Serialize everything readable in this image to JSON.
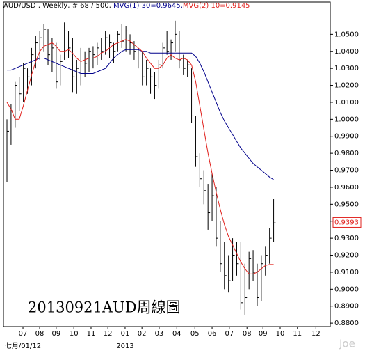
{
  "chart_data": {
    "type": "ohlc",
    "title": "AUD/USD , Weekly, # 68 / 500, ",
    "annotation": "20130921AUD周線圖",
    "watermark": "Joe",
    "color": "#000000",
    "high": [
      1.0,
      1.009,
      1.022,
      1.025,
      1.033,
      1.03,
      1.042,
      1.049,
      1.052,
      1.056,
      1.053,
      1.048,
      1.045,
      1.038,
      1.057,
      1.052,
      1.048,
      1.035,
      1.042,
      1.04,
      1.042,
      1.043,
      1.045,
      1.048,
      1.052,
      1.05,
      1.045,
      1.052,
      1.056,
      1.055,
      1.05,
      1.046,
      1.042,
      1.04,
      1.035,
      1.03,
      1.028,
      1.035,
      1.045,
      1.052,
      1.047,
      1.058,
      1.052,
      1.038,
      1.035,
      1.03,
      1.002,
      0.98,
      0.97,
      0.962,
      0.968,
      0.96,
      0.94,
      0.928,
      0.92,
      0.93,
      0.928,
      0.928,
      0.915,
      0.922,
      0.923,
      0.915,
      0.92,
      0.925,
      0.936,
      0.953
    ],
    "low": [
      0.963,
      0.985,
      0.995,
      1.005,
      1.01,
      1.015,
      1.02,
      1.03,
      1.035,
      1.04,
      1.032,
      1.028,
      1.018,
      1.02,
      1.035,
      1.036,
      1.016,
      1.015,
      1.02,
      1.025,
      1.028,
      1.03,
      1.032,
      1.035,
      1.038,
      1.036,
      1.033,
      1.04,
      1.042,
      1.04,
      1.038,
      1.035,
      1.03,
      1.02,
      1.02,
      1.015,
      1.012,
      1.018,
      1.03,
      1.038,
      1.035,
      1.04,
      1.03,
      1.026,
      1.025,
      0.998,
      0.972,
      0.96,
      0.95,
      0.935,
      0.94,
      0.925,
      0.91,
      0.9,
      0.898,
      0.905,
      0.908,
      0.888,
      0.885,
      0.9,
      0.905,
      0.89,
      0.893,
      0.908,
      0.915,
      0.928
    ],
    "close": [
      0.993,
      1.005,
      1.02,
      1.015,
      1.03,
      1.025,
      1.038,
      1.045,
      1.048,
      1.053,
      1.038,
      1.042,
      1.022,
      1.034,
      1.052,
      1.042,
      1.025,
      1.03,
      1.036,
      1.033,
      1.04,
      1.038,
      1.042,
      1.04,
      1.048,
      1.045,
      1.04,
      1.05,
      1.046,
      1.052,
      1.045,
      1.04,
      1.036,
      1.025,
      1.03,
      1.025,
      1.02,
      1.032,
      1.042,
      1.04,
      1.045,
      1.05,
      1.035,
      1.03,
      1.032,
      1.002,
      0.978,
      0.965,
      0.958,
      0.945,
      0.955,
      0.93,
      0.915,
      0.908,
      0.905,
      0.92,
      0.915,
      0.892,
      0.895,
      0.918,
      0.91,
      0.895,
      0.915,
      0.92,
      0.93,
      0.939
    ],
    "series": [
      {
        "name": "MVG(1) 30=0.9645,",
        "color": "#00008b",
        "values": [
          1.029,
          1.029,
          1.03,
          1.031,
          1.032,
          1.033,
          1.034,
          1.035,
          1.036,
          1.036,
          1.035,
          1.034,
          1.033,
          1.032,
          1.031,
          1.03,
          1.029,
          1.028,
          1.027,
          1.027,
          1.027,
          1.027,
          1.028,
          1.029,
          1.03,
          1.033,
          1.036,
          1.038,
          1.04,
          1.041,
          1.041,
          1.041,
          1.041,
          1.04,
          1.04,
          1.039,
          1.039,
          1.039,
          1.039,
          1.039,
          1.039,
          1.039,
          1.039,
          1.039,
          1.039,
          1.039,
          1.037,
          1.033,
          1.028,
          1.022,
          1.016,
          1.01,
          1.004,
          0.999,
          0.995,
          0.991,
          0.987,
          0.983,
          0.98,
          0.977,
          0.974,
          0.972,
          0.97,
          0.968,
          0.966,
          0.9645
        ]
      },
      {
        "name": "MVG(2) 10=0.9145",
        "color": "#e0201c",
        "values": [
          1.01,
          1.006,
          1.0,
          1.0,
          1.008,
          1.017,
          1.026,
          1.034,
          1.04,
          1.043,
          1.044,
          1.045,
          1.043,
          1.04,
          1.04,
          1.041,
          1.039,
          1.036,
          1.034,
          1.035,
          1.036,
          1.036,
          1.037,
          1.039,
          1.04,
          1.042,
          1.044,
          1.045,
          1.046,
          1.047,
          1.046,
          1.044,
          1.042,
          1.04,
          1.036,
          1.033,
          1.03,
          1.03,
          1.032,
          1.036,
          1.038,
          1.036,
          1.035,
          1.036,
          1.035,
          1.032,
          1.022,
          1.008,
          0.994,
          0.98,
          0.968,
          0.957,
          0.947,
          0.938,
          0.931,
          0.926,
          0.921,
          0.916,
          0.912,
          0.909,
          0.909,
          0.91,
          0.912,
          0.914,
          0.9145,
          0.9145
        ]
      }
    ],
    "last_price": 0.9393,
    "ylim": [
      0.878,
      1.069
    ],
    "yticks": [
      {
        "value": 0.88,
        "label": "0.8800"
      },
      {
        "value": 0.89,
        "label": "0.8900"
      },
      {
        "value": 0.9,
        "label": "0.9000"
      },
      {
        "value": 0.91,
        "label": "0.9100"
      },
      {
        "value": 0.92,
        "label": "0.9200"
      },
      {
        "value": 0.93,
        "label": "0.9300"
      },
      {
        "value": 0.94,
        "label": "0.9400"
      },
      {
        "value": 0.95,
        "label": "0.9500"
      },
      {
        "value": 0.96,
        "label": "0.9600"
      },
      {
        "value": 0.97,
        "label": "0.9700"
      },
      {
        "value": 0.98,
        "label": "0.9800"
      },
      {
        "value": 0.99,
        "label": "0.9900"
      },
      {
        "value": 1.0,
        "label": "1.0000"
      },
      {
        "value": 1.01,
        "label": "1.0100"
      },
      {
        "value": 1.02,
        "label": "1.0200"
      },
      {
        "value": 1.03,
        "label": "1.0300"
      },
      {
        "value": 1.04,
        "label": "1.0400"
      },
      {
        "value": 1.05,
        "label": "1.0500"
      }
    ],
    "xlim": [
      -0.85,
      78.8
    ],
    "xticks": [
      {
        "value": 3.9,
        "label": "07"
      },
      {
        "value": 7.97,
        "label": "08"
      },
      {
        "value": 12.0,
        "label": "09"
      },
      {
        "value": 16.3,
        "label": "10"
      },
      {
        "value": 20.5,
        "label": "11"
      },
      {
        "value": 24.6,
        "label": "12"
      },
      {
        "value": 28.8,
        "label": "01"
      },
      {
        "value": 32.9,
        "label": "02"
      },
      {
        "value": 37.1,
        "label": "03"
      },
      {
        "value": 41.4,
        "label": "04"
      },
      {
        "value": 45.8,
        "label": "05"
      },
      {
        "value": 50.0,
        "label": "06"
      },
      {
        "value": 54.2,
        "label": "07"
      },
      {
        "value": 58.5,
        "label": "08"
      },
      {
        "value": 62.4,
        "label": "09"
      },
      {
        "value": 66.6,
        "label": "10"
      },
      {
        "value": 70.8,
        "label": "11"
      },
      {
        "value": 75.3,
        "label": "12"
      }
    ],
    "x_period_labels": [
      {
        "value": 3.9,
        "label": "七月/01/12"
      },
      {
        "value": 28.8,
        "label": "2013"
      }
    ]
  }
}
